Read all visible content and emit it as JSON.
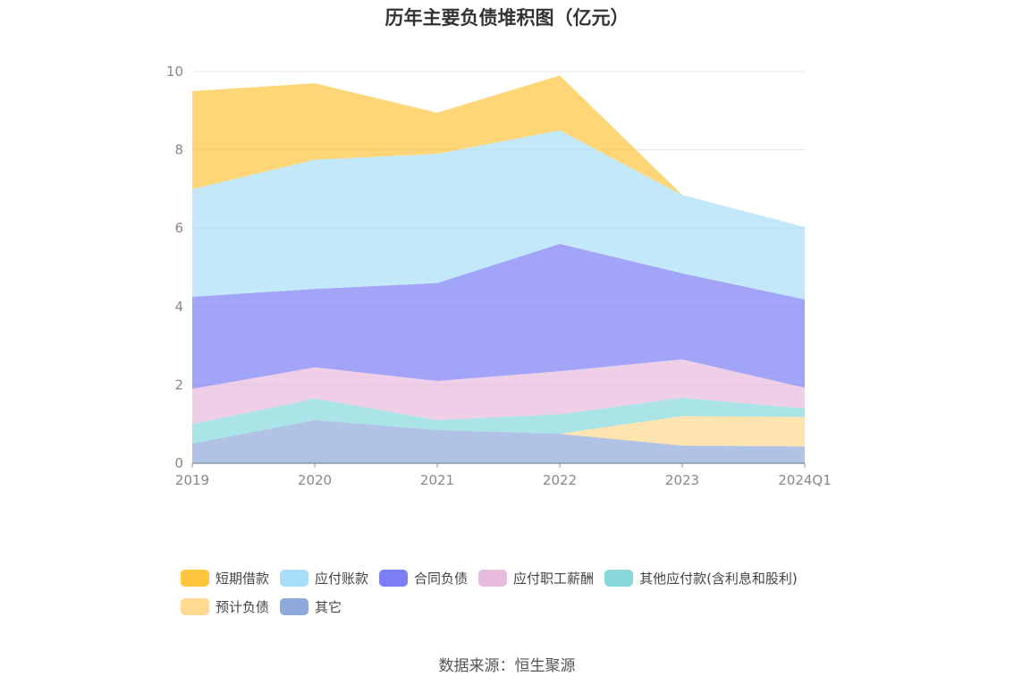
{
  "chart_data": {
    "type": "area",
    "stacked": true,
    "title": "历年主要负债堆积图（亿元）",
    "categories": [
      "2019",
      "2020",
      "2021",
      "2022",
      "2023",
      "2024Q1"
    ],
    "ylim": [
      0,
      10
    ],
    "yticks": [
      "0",
      "2",
      "4",
      "6",
      "8",
      "10"
    ],
    "grid": true,
    "legend_position": "bottom",
    "series": [
      {
        "name": "其它",
        "color": "#8eaadb",
        "values": [
          0.5,
          1.1,
          0.85,
          0.75,
          0.45,
          0.43
        ]
      },
      {
        "name": "预计负债",
        "color": "#ffd98f",
        "values": [
          0,
          0,
          0,
          0,
          0.75,
          0.75
        ]
      },
      {
        "name": "其他应付款(含利息和股利)",
        "color": "#88d8db",
        "values": [
          0.5,
          0.55,
          0.25,
          0.5,
          0.47,
          0.22
        ]
      },
      {
        "name": "应付职工薪酬",
        "color": "#e8bbdd",
        "values": [
          0.9,
          0.8,
          1.0,
          1.1,
          0.98,
          0.53
        ]
      },
      {
        "name": "合同负债",
        "color": "#7b7ef5",
        "values": [
          2.35,
          2.0,
          2.5,
          3.25,
          2.2,
          2.25
        ]
      },
      {
        "name": "应付账款",
        "color": "#a8def8",
        "values": [
          2.75,
          3.3,
          3.3,
          2.9,
          2.0,
          1.85
        ]
      },
      {
        "name": "短期借款",
        "color": "#ffc53d",
        "values": [
          2.5,
          1.95,
          1.05,
          1.4,
          0,
          0
        ]
      }
    ]
  },
  "legend": [
    {
      "label": "短期借款",
      "color": "#ffc53d"
    },
    {
      "label": "应付账款",
      "color": "#a8def8"
    },
    {
      "label": "合同负债",
      "color": "#7b7ef5"
    },
    {
      "label": "应付职工薪酬",
      "color": "#e8bbdd"
    },
    {
      "label": "其他应付款(含利息和股利)",
      "color": "#88d8db"
    },
    {
      "label": "预计负债",
      "color": "#ffd98f"
    },
    {
      "label": "其它",
      "color": "#8eaadb"
    }
  ],
  "source": "数据来源：恒生聚源"
}
